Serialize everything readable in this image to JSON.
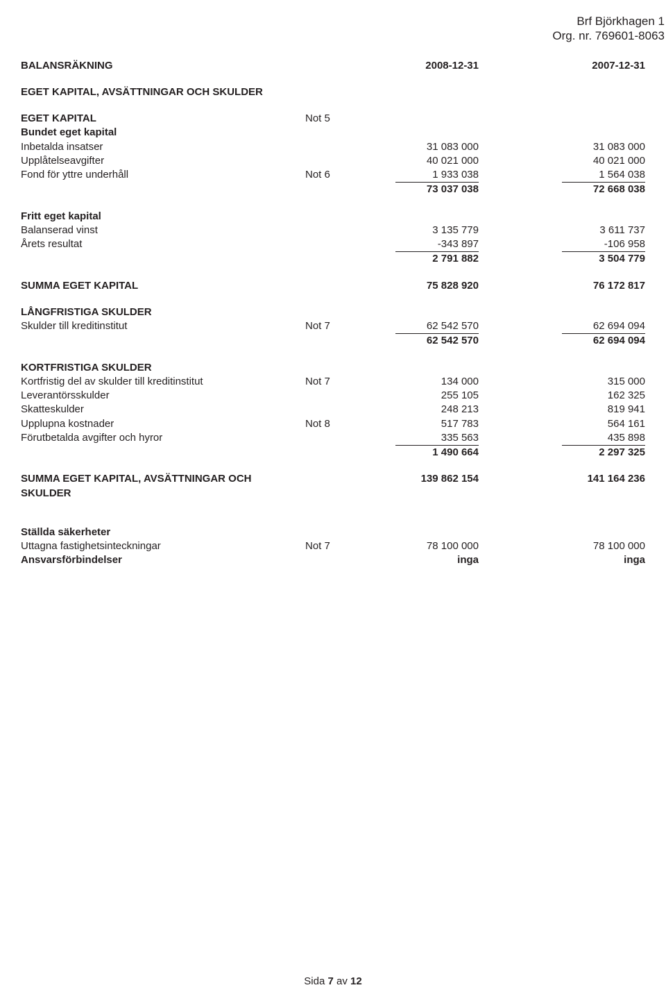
{
  "header": {
    "company": "Brf Björkhagen 1",
    "orgnr": "Org. nr. 769601-8063"
  },
  "title": "BALANSRÄKNING",
  "dates": {
    "d1": "2008-12-31",
    "d2": "2007-12-31"
  },
  "s1": {
    "heading": "EGET KAPITAL, AVSÄTTNINGAR OCH SKULDER",
    "eget_kapital": "EGET KAPITAL",
    "note5": "Not 5",
    "bundet": "Bundet eget kapital",
    "r1": {
      "label": "Inbetalda insatser",
      "v1": "31 083 000",
      "v2": "31 083 000"
    },
    "r2": {
      "label": "Upplåtelseavgifter",
      "v1": "40 021 000",
      "v2": "40 021 000"
    },
    "r3": {
      "label": "Fond för yttre underhåll",
      "note": "Not 6",
      "v1": "1 933 038",
      "v2": "1 564 038"
    },
    "sub1": {
      "v1": "73 037 038",
      "v2": "72 668 038"
    },
    "fritt": "Fritt eget kapital",
    "r4": {
      "label": "Balanserad vinst",
      "v1": "3 135 779",
      "v2": "3 611 737"
    },
    "r5": {
      "label": "Årets resultat",
      "v1": "-343 897",
      "v2": "-106 958"
    },
    "sub2": {
      "v1": "2 791 882",
      "v2": "3 504 779"
    },
    "total_eget": {
      "label": "SUMMA EGET KAPITAL",
      "v1": "75 828 920",
      "v2": "76 172 817"
    }
  },
  "s2": {
    "heading": "LÅNGFRISTIGA SKULDER",
    "r1": {
      "label": "Skulder till kreditinstitut",
      "note": "Not 7",
      "v1": "62 542 570",
      "v2": "62 694 094"
    },
    "sub": {
      "v1": "62 542 570",
      "v2": "62 694 094"
    }
  },
  "s3": {
    "heading": "KORTFRISTIGA SKULDER",
    "r1": {
      "label": "Kortfristig del av skulder till kreditinstitut",
      "note": "Not 7",
      "v1": "134 000",
      "v2": "315 000"
    },
    "r2": {
      "label": "Leverantörsskulder",
      "v1": "255 105",
      "v2": "162 325"
    },
    "r3": {
      "label": "Skatteskulder",
      "v1": "248 213",
      "v2": "819 941"
    },
    "r4": {
      "label": "Upplupna kostnader",
      "note": "Not 8",
      "v1": "517 783",
      "v2": "564 161"
    },
    "r5": {
      "label": "Förutbetalda avgifter och hyror",
      "v1": "335 563",
      "v2": "435 898"
    },
    "sub": {
      "v1": "1 490 664",
      "v2": "2 297 325"
    }
  },
  "grand": {
    "label1": "SUMMA EGET KAPITAL, AVSÄTTNINGAR OCH",
    "label2": "SKULDER",
    "v1": "139 862 154",
    "v2": "141 164 236"
  },
  "s4": {
    "heading": "Ställda säkerheter",
    "r1": {
      "label": "Uttagna fastighetsinteckningar",
      "note": "Not 7",
      "v1": "78 100 000",
      "v2": "78 100 000"
    },
    "r2": {
      "label": "Ansvarsförbindelser",
      "v1": "inga",
      "v2": "inga"
    }
  },
  "footer": {
    "pre": "Sida ",
    "page": "7",
    "post": " av ",
    "total": "12"
  }
}
